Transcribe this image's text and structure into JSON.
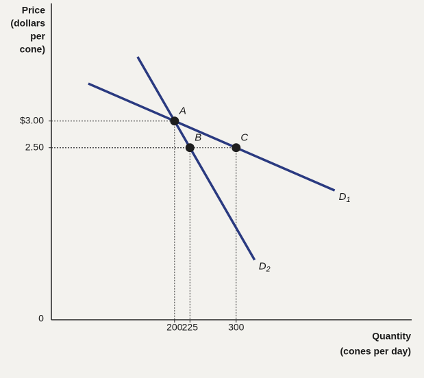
{
  "chart_data": {
    "type": "line",
    "y_title_lines": [
      "Price",
      "(dollars",
      "per",
      "cone)"
    ],
    "x_title_lines": [
      "Quantity",
      "(cones per day)"
    ],
    "origin_label": "0",
    "series": [
      {
        "name": "D",
        "subscript": "1",
        "color": "#2a3a80",
        "x": [
          60,
          460
        ],
        "values": [
          3.7,
          1.7
        ]
      },
      {
        "name": "D",
        "subscript": "2",
        "color": "#2a3a80",
        "x": [
          140,
          330
        ],
        "values": [
          4.2,
          0.4
        ]
      }
    ],
    "points": {
      "labels": [
        "A",
        "B",
        "C"
      ],
      "x": [
        200,
        225,
        300
      ],
      "values": [
        3,
        2.5,
        2.5
      ],
      "color": "#1e1e1e"
    },
    "xlim": [
      0,
      585
    ],
    "ylim": [
      -0.72,
      5.2
    ],
    "xticks": [
      200,
      225,
      300
    ],
    "yticks": [
      {
        "value": 3,
        "label": "$3.00"
      },
      {
        "value": 2.5,
        "label": "2.50"
      }
    ]
  }
}
